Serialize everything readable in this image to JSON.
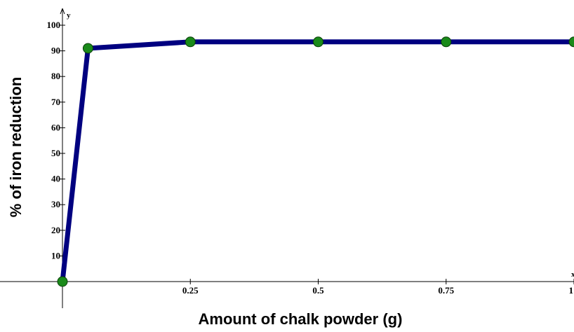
{
  "chart_data": {
    "type": "line",
    "title": "",
    "xlabel": "Amount of chalk powder (g)",
    "ylabel": "% of iron reduction",
    "x_axis_letter": "x",
    "y_axis_letter": "y",
    "xlim": [
      0,
      1
    ],
    "ylim": [
      0,
      100
    ],
    "x_ticks": [
      0.25,
      0.5,
      0.75,
      1
    ],
    "x_tick_labels": [
      "0.25",
      "0.5",
      "0.75",
      "1"
    ],
    "y_ticks": [
      10,
      20,
      30,
      40,
      50,
      60,
      70,
      80,
      90,
      100
    ],
    "y_tick_labels": [
      "10",
      "20",
      "30",
      "40",
      "50",
      "60",
      "70",
      "80",
      "90",
      "100"
    ],
    "grid": false,
    "legend": "none",
    "series": [
      {
        "x": [
          0,
          0.05,
          0.25,
          0.5,
          0.75,
          1
        ],
        "y": [
          0,
          91,
          93.5,
          93.5,
          93.5,
          93.5
        ],
        "line_color": "#000080",
        "marker_color": "#1a8a1a"
      }
    ]
  }
}
